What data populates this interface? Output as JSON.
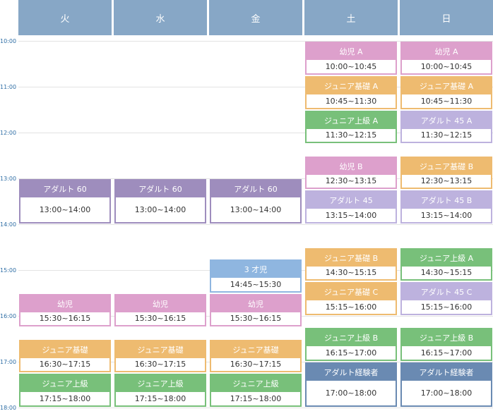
{
  "days": [
    "火",
    "水",
    "金",
    "土",
    "日"
  ],
  "times": [
    "10:00",
    "11:00",
    "12:00",
    "13:00",
    "14:00",
    "15:00",
    "16:00",
    "17:00",
    "18:00"
  ],
  "colors": {
    "header": "#87a7c6",
    "pink": "#dda0cc",
    "orange": "#eebb70",
    "green": "#78c07a",
    "purple": "#9e8dbd",
    "lavender": "#bdb2de",
    "blue": "#8fb6e0",
    "navy": "#6a8ab2"
  },
  "sessions": [
    {
      "day": "土",
      "title": "幼児 A",
      "time": "10:00~10:45",
      "color": "pink",
      "start": "10:00",
      "end": "10:45"
    },
    {
      "day": "日",
      "title": "幼児 A",
      "time": "10:00~10:45",
      "color": "pink",
      "start": "10:00",
      "end": "10:45"
    },
    {
      "day": "土",
      "title": "ジュニア基礎 A",
      "time": "10:45~11:30",
      "color": "orange",
      "start": "10:45",
      "end": "11:30"
    },
    {
      "day": "日",
      "title": "ジュニア基礎 A",
      "time": "10:45~11:30",
      "color": "orange",
      "start": "10:45",
      "end": "11:30"
    },
    {
      "day": "土",
      "title": "ジュニア上級 A",
      "time": "11:30~12:15",
      "color": "green",
      "start": "11:30",
      "end": "12:15"
    },
    {
      "day": "日",
      "title": "アダルト 45 A",
      "time": "11:30~12:15",
      "color": "lavender",
      "start": "11:30",
      "end": "12:15"
    },
    {
      "day": "土",
      "title": "幼児 B",
      "time": "12:30~13:15",
      "color": "pink",
      "start": "12:30",
      "end": "13:15"
    },
    {
      "day": "日",
      "title": "ジュニア基礎 B",
      "time": "12:30~13:15",
      "color": "orange",
      "start": "12:30",
      "end": "13:15"
    },
    {
      "day": "火",
      "title": "アダルト 60",
      "time": "13:00~14:00",
      "color": "purple",
      "start": "13:00",
      "end": "14:00"
    },
    {
      "day": "水",
      "title": "アダルト 60",
      "time": "13:00~14:00",
      "color": "purple",
      "start": "13:00",
      "end": "14:00"
    },
    {
      "day": "金",
      "title": "アダルト 60",
      "time": "13:00~14:00",
      "color": "purple",
      "start": "13:00",
      "end": "14:00"
    },
    {
      "day": "土",
      "title": "アダルト 45",
      "time": "13:15~14:00",
      "color": "lavender",
      "start": "13:15",
      "end": "14:00"
    },
    {
      "day": "日",
      "title": "アダルト 45 B",
      "time": "13:15~14:00",
      "color": "lavender",
      "start": "13:15",
      "end": "14:00"
    },
    {
      "day": "土",
      "title": "ジュニア基礎 B",
      "time": "14:30~15:15",
      "color": "orange",
      "start": "14:30",
      "end": "15:15"
    },
    {
      "day": "日",
      "title": "ジュニア上級 A",
      "time": "14:30~15:15",
      "color": "green",
      "start": "14:30",
      "end": "15:15"
    },
    {
      "day": "金",
      "title": "3 才児",
      "time": "14:45~15:30",
      "color": "blue",
      "start": "14:45",
      "end": "15:30"
    },
    {
      "day": "土",
      "title": "ジュニア基礎 C",
      "time": "15:15~16:00",
      "color": "orange",
      "start": "15:15",
      "end": "16:00"
    },
    {
      "day": "日",
      "title": "アダルト 45 C",
      "time": "15:15~16:00",
      "color": "lavender",
      "start": "15:15",
      "end": "16:00"
    },
    {
      "day": "火",
      "title": "幼児",
      "time": "15:30~16:15",
      "color": "pink",
      "start": "15:30",
      "end": "16:15"
    },
    {
      "day": "水",
      "title": "幼児",
      "time": "15:30~16:15",
      "color": "pink",
      "start": "15:30",
      "end": "16:15"
    },
    {
      "day": "金",
      "title": "幼児",
      "time": "15:30~16:15",
      "color": "pink",
      "start": "15:30",
      "end": "16:15"
    },
    {
      "day": "土",
      "title": "ジュニア上級 B",
      "time": "16:15~17:00",
      "color": "green",
      "start": "16:15",
      "end": "17:00"
    },
    {
      "day": "日",
      "title": "ジュニア上級 B",
      "time": "16:15~17:00",
      "color": "green",
      "start": "16:15",
      "end": "17:00"
    },
    {
      "day": "火",
      "title": "ジュニア基礎",
      "time": "16:30~17:15",
      "color": "orange",
      "start": "16:30",
      "end": "17:15"
    },
    {
      "day": "水",
      "title": "ジュニア基礎",
      "time": "16:30~17:15",
      "color": "orange",
      "start": "16:30",
      "end": "17:15"
    },
    {
      "day": "金",
      "title": "ジュニア基礎",
      "time": "16:30~17:15",
      "color": "orange",
      "start": "16:30",
      "end": "17:15"
    },
    {
      "day": "土",
      "title": "アダルト経験者",
      "time": "17:00~18:00",
      "color": "navy",
      "start": "17:00",
      "end": "18:00"
    },
    {
      "day": "日",
      "title": "アダルト経験者",
      "time": "17:00~18:00",
      "color": "navy",
      "start": "17:00",
      "end": "18:00"
    },
    {
      "day": "火",
      "title": "ジュニア上級",
      "time": "17:15~18:00",
      "color": "green",
      "start": "17:15",
      "end": "18:00"
    },
    {
      "day": "水",
      "title": "ジュニア上級",
      "time": "17:15~18:00",
      "color": "green",
      "start": "17:15",
      "end": "18:00"
    },
    {
      "day": "金",
      "title": "ジュニア上級",
      "time": "17:15~18:00",
      "color": "green",
      "start": "17:15",
      "end": "18:00"
    }
  ]
}
